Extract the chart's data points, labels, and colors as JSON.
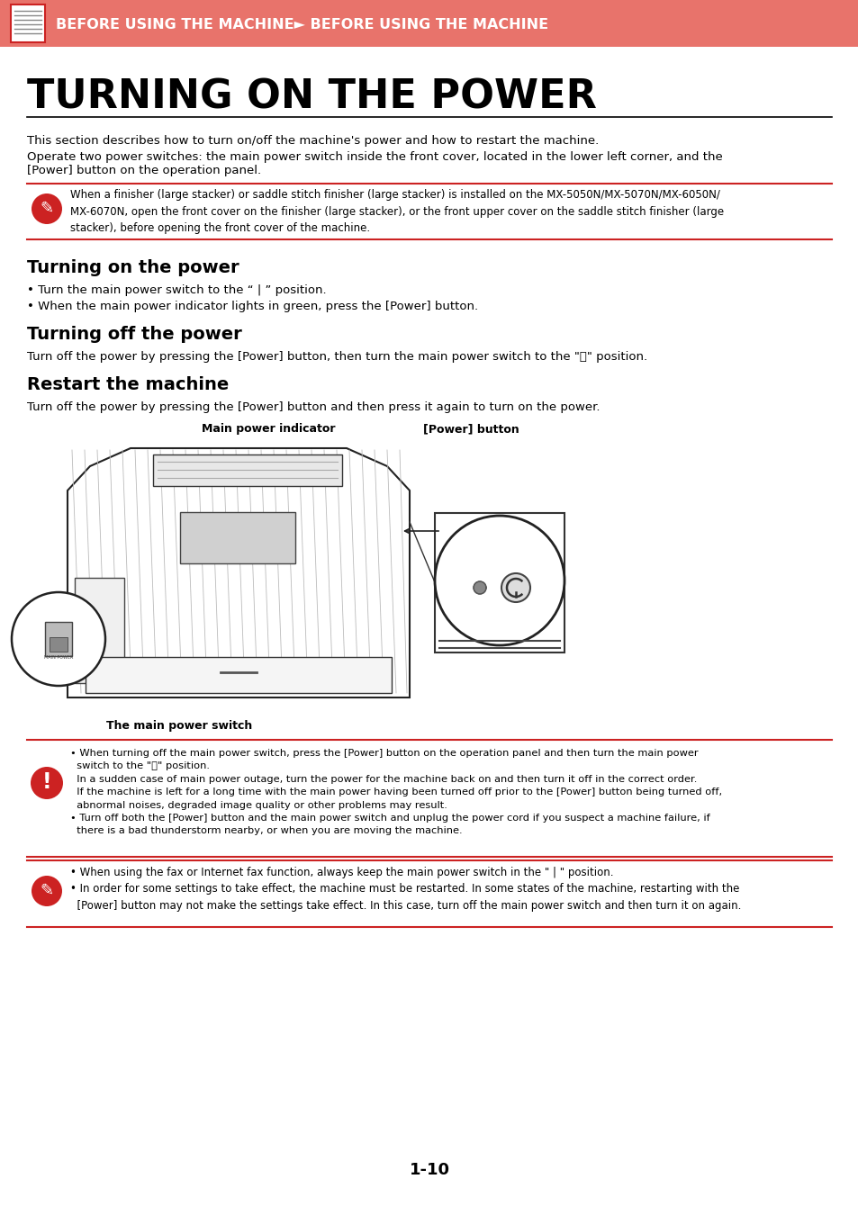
{
  "header_bg": "#E8736B",
  "header_text": "BEFORE USING THE MACHINE► BEFORE USING THE MACHINE",
  "header_text_color": "#FFFFFF",
  "page_bg": "#FFFFFF",
  "main_title": "TURNING ON THE POWER",
  "main_title_color": "#000000",
  "intro_text_1": "This section describes how to turn on/off the machine's power and how to restart the machine.",
  "intro_text_2": "Operate two power switches: the main power switch inside the front cover, located in the lower left corner, and the\n[Power] button on the operation panel.",
  "note1_text": "When a finisher (large stacker) or saddle stitch finisher (large stacker) is installed on the MX-5050N/MX-5070N/MX-6050N/\nMX-6070N, open the front cover on the finisher (large stacker), or the front upper cover on the saddle stitch finisher (large\nstacker), before opening the front cover of the machine.",
  "section1_title": "Turning on the power",
  "section1_bullet1": "• Turn the main power switch to the “ | ” position.",
  "section1_bullet2": "• When the main power indicator lights in green, press the [Power] button.",
  "section2_title": "Turning off the power",
  "section2_text": "Turn off the power by pressing the [Power] button, then turn the main power switch to the \"⏻\" position.",
  "section3_title": "Restart the machine",
  "section3_text": "Turn off the power by pressing the [Power] button and then press it again to turn on the power.",
  "diagram_label1": "Main power indicator",
  "diagram_label2": "[Power] button",
  "diagram_caption": "The main power switch",
  "warning_text": "• When turning off the main power switch, press the [Power] button on the operation panel and then turn the main power\n  switch to the \"⏻\" position.\n  In a sudden case of main power outage, turn the power for the machine back on and then turn it off in the correct order.\n  If the machine is left for a long time with the main power having been turned off prior to the [Power] button being turned off,\n  abnormal noises, degraded image quality or other problems may result.\n• Turn off both the [Power] button and the main power switch and unplug the power cord if you suspect a machine failure, if\n  there is a bad thunderstorm nearby, or when you are moving the machine.",
  "note2_text": "• When using the fax or Internet fax function, always keep the main power switch in the \" | \" position.\n• In order for some settings to take effect, the machine must be restarted. In some states of the machine, restarting with the\n  [Power] button may not make the settings take effect. In this case, turn off the main power switch and then turn it on again.",
  "page_number": "1-10",
  "red_color": "#CC2222",
  "line_color": "#CC2222"
}
